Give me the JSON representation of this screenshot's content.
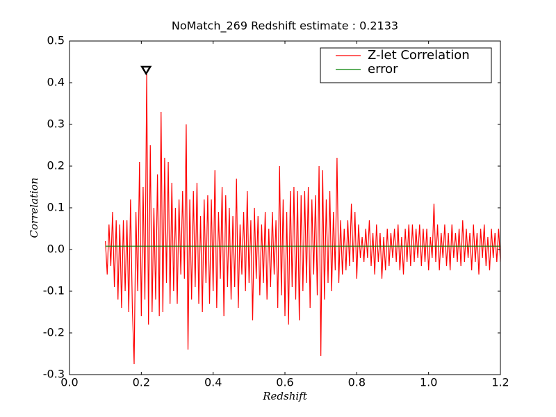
{
  "chart_data": {
    "type": "line",
    "title": "NoMatch_269 Redshift estimate : 0.2133",
    "xlabel": "Redshift",
    "ylabel": "Correlation",
    "xlim": [
      0,
      1.2
    ],
    "ylim": [
      -0.3,
      0.5
    ],
    "xticks": [
      {
        "value": 0,
        "label": "0.0"
      },
      0.2,
      0.4,
      0.6,
      0.8,
      {
        "value": 1,
        "label": "1.0"
      },
      1.2
    ],
    "yticks": [
      -0.3,
      -0.2,
      -0.1,
      {
        "value": 0,
        "label": "0.0"
      },
      0.1,
      0.2,
      0.3,
      0.4,
      0.5
    ],
    "legend": "upper right",
    "marker": {
      "x": 0.2133,
      "y": 0.43
    },
    "series": [
      {
        "name": "Z-let Correlation",
        "color": "#ff0000",
        "x": [
          0.1,
          0.105,
          0.11,
          0.115,
          0.12,
          0.125,
          0.13,
          0.135,
          0.14,
          0.145,
          0.15,
          0.155,
          0.16,
          0.165,
          0.17,
          0.175,
          0.18,
          0.185,
          0.19,
          0.195,
          0.2,
          0.205,
          0.21,
          0.215,
          0.22,
          0.225,
          0.23,
          0.235,
          0.24,
          0.245,
          0.25,
          0.255,
          0.26,
          0.265,
          0.27,
          0.275,
          0.28,
          0.285,
          0.29,
          0.295,
          0.3,
          0.305,
          0.31,
          0.315,
          0.32,
          0.325,
          0.33,
          0.335,
          0.34,
          0.345,
          0.35,
          0.355,
          0.36,
          0.365,
          0.37,
          0.375,
          0.38,
          0.385,
          0.39,
          0.395,
          0.4,
          0.405,
          0.41,
          0.415,
          0.42,
          0.425,
          0.43,
          0.435,
          0.44,
          0.445,
          0.45,
          0.455,
          0.46,
          0.465,
          0.47,
          0.475,
          0.48,
          0.485,
          0.49,
          0.495,
          0.5,
          0.505,
          0.51,
          0.515,
          0.52,
          0.525,
          0.53,
          0.535,
          0.54,
          0.545,
          0.55,
          0.555,
          0.56,
          0.565,
          0.57,
          0.575,
          0.58,
          0.585,
          0.59,
          0.595,
          0.6,
          0.605,
          0.61,
          0.615,
          0.62,
          0.625,
          0.63,
          0.635,
          0.64,
          0.645,
          0.65,
          0.655,
          0.66,
          0.665,
          0.67,
          0.675,
          0.68,
          0.685,
          0.69,
          0.695,
          0.7,
          0.705,
          0.71,
          0.715,
          0.72,
          0.725,
          0.73,
          0.735,
          0.74,
          0.745,
          0.75,
          0.755,
          0.76,
          0.765,
          0.77,
          0.775,
          0.78,
          0.785,
          0.79,
          0.795,
          0.8,
          0.805,
          0.81,
          0.815,
          0.82,
          0.825,
          0.83,
          0.835,
          0.84,
          0.845,
          0.85,
          0.855,
          0.86,
          0.865,
          0.87,
          0.875,
          0.88,
          0.885,
          0.89,
          0.895,
          0.9,
          0.905,
          0.91,
          0.915,
          0.92,
          0.925,
          0.93,
          0.935,
          0.94,
          0.945,
          0.95,
          0.955,
          0.96,
          0.965,
          0.97,
          0.975,
          0.98,
          0.985,
          0.99,
          0.995,
          1.0,
          1.005,
          1.01,
          1.015,
          1.02,
          1.025,
          1.03,
          1.035,
          1.04,
          1.045,
          1.05,
          1.055,
          1.06,
          1.065,
          1.07,
          1.075,
          1.08,
          1.085,
          1.09,
          1.095,
          1.1,
          1.105,
          1.11,
          1.115,
          1.12,
          1.125,
          1.13,
          1.135,
          1.14,
          1.145,
          1.15,
          1.155,
          1.16,
          1.165,
          1.17,
          1.175,
          1.18,
          1.185,
          1.19,
          1.195,
          1.2
        ],
        "values": [
          0.02,
          -0.06,
          0.06,
          -0.04,
          0.09,
          -0.09,
          0.07,
          -0.12,
          0.06,
          -0.14,
          0.07,
          -0.1,
          0.07,
          -0.15,
          0.12,
          -0.14,
          -0.275,
          0.09,
          -0.1,
          0.21,
          -0.16,
          0.15,
          -0.12,
          0.42,
          -0.18,
          0.25,
          -0.15,
          0.1,
          -0.12,
          0.18,
          -0.16,
          0.33,
          -0.15,
          0.22,
          -0.08,
          0.21,
          -0.13,
          0.16,
          -0.1,
          0.1,
          -0.13,
          0.12,
          -0.06,
          0.14,
          -0.07,
          0.3,
          -0.24,
          0.12,
          -0.12,
          0.14,
          -0.09,
          0.16,
          -0.13,
          0.08,
          -0.15,
          0.12,
          -0.08,
          0.13,
          -0.13,
          0.12,
          -0.1,
          0.19,
          -0.14,
          0.09,
          -0.07,
          0.15,
          -0.16,
          0.13,
          -0.09,
          0.1,
          -0.12,
          0.08,
          -0.09,
          0.17,
          -0.14,
          0.06,
          -0.06,
          0.09,
          -0.1,
          0.14,
          -0.08,
          0.07,
          -0.17,
          0.1,
          -0.07,
          0.08,
          -0.11,
          0.06,
          -0.08,
          0.09,
          -0.12,
          0.05,
          -0.09,
          0.09,
          -0.06,
          0.07,
          -0.14,
          0.2,
          -0.11,
          0.12,
          -0.16,
          0.09,
          -0.18,
          0.14,
          -0.09,
          0.15,
          -0.12,
          0.14,
          -0.17,
          0.13,
          -0.1,
          0.14,
          -0.08,
          0.15,
          -0.14,
          0.12,
          -0.06,
          0.13,
          -0.11,
          0.2,
          -0.255,
          0.19,
          -0.12,
          0.12,
          -0.08,
          0.14,
          -0.1,
          0.09,
          -0.05,
          0.22,
          -0.08,
          0.07,
          -0.06,
          0.05,
          -0.05,
          0.07,
          -0.04,
          0.11,
          -0.03,
          0.09,
          -0.07,
          0.06,
          -0.02,
          0.03,
          -0.03,
          0.05,
          -0.02,
          0.07,
          -0.04,
          0.04,
          -0.06,
          0.06,
          -0.03,
          0.04,
          -0.07,
          0.03,
          -0.05,
          0.05,
          -0.04,
          0.04,
          -0.02,
          0.05,
          -0.03,
          0.06,
          -0.05,
          0.03,
          -0.06,
          0.05,
          -0.03,
          0.06,
          -0.04,
          0.06,
          -0.03,
          0.05,
          -0.02,
          0.06,
          -0.04,
          0.05,
          -0.03,
          0.05,
          -0.05,
          0.03,
          -0.02,
          0.11,
          -0.03,
          0.06,
          -0.05,
          0.04,
          -0.02,
          0.06,
          -0.04,
          0.04,
          -0.05,
          0.06,
          -0.02,
          0.04,
          -0.03,
          0.05,
          -0.04,
          0.07,
          -0.03,
          0.05,
          -0.02,
          0.04,
          -0.05,
          0.06,
          -0.03,
          0.04,
          -0.06,
          0.05,
          -0.02,
          0.06,
          -0.04,
          0.03,
          -0.05,
          0.05,
          -0.02,
          0.04,
          -0.03,
          0.05,
          -0.03
        ]
      },
      {
        "name": "error",
        "color": "#008000",
        "x": [
          0.1,
          1.2
        ],
        "values": [
          0.008,
          0.008
        ]
      }
    ]
  }
}
